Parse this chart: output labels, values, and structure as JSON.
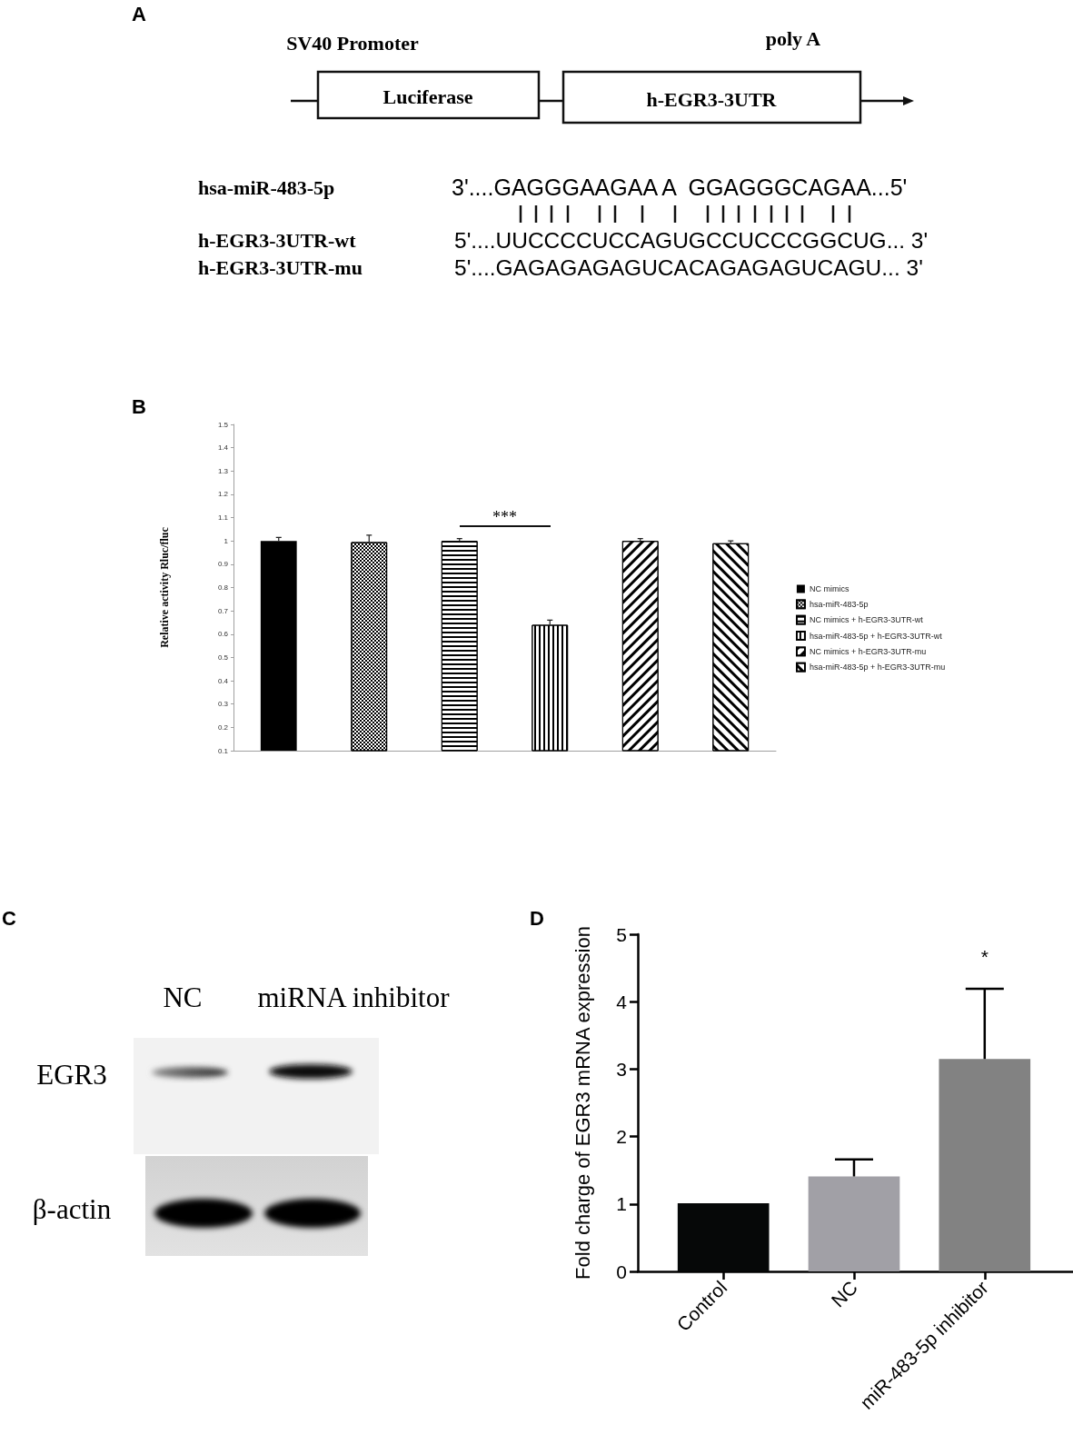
{
  "chart_data": [
    {
      "type": "other",
      "title": "A",
      "annotations": [
        "SV40 Promoter",
        "poly A",
        "Luciferase",
        "h-EGR3-3UTR",
        "hsa-miR-483-5p",
        "3'....GAGGGAAGAA A  GGAGGGCAGAA...5'",
        "h-EGR3-3UTR-wt",
        "5'....UUCCCCUCCAGUGCCUCCCGGCUG... 3'",
        "h-EGR3-3UTR-mu",
        "5'....GAGAGAGAGUCACAGAGAGUCAGU... 3'"
      ]
    },
    {
      "type": "bar",
      "title": "B",
      "ylabel": "Relative activity Rluc/fluc",
      "categories": [
        null,
        null,
        null,
        null,
        null,
        null
      ],
      "series": [
        {
          "name": "NC mimics",
          "color": "#000000",
          "values": [
            1,
            null,
            null,
            null,
            null,
            null
          ],
          "errors": [
            0.015,
            null,
            null,
            null,
            null,
            null
          ]
        },
        {
          "name": "hsa-miR-483-5p",
          "color": "#000000",
          "values": [
            null,
            0.995,
            null,
            null,
            null,
            null
          ],
          "errors": [
            null,
            0.03,
            null,
            null,
            null,
            null
          ]
        },
        {
          "name": "NC mimics + h-EGR3-3UTR-wt",
          "color": "#000000",
          "values": [
            null,
            null,
            1,
            null,
            null,
            null
          ],
          "errors": [
            null,
            null,
            0.01,
            null,
            null,
            null
          ]
        },
        {
          "name": "hsa-miR-483-5p + h-EGR3-3UTR-wt",
          "color": "#000000",
          "values": [
            null,
            null,
            null,
            0.64,
            null,
            null
          ],
          "errors": [
            null,
            null,
            null,
            0.02,
            null,
            null
          ]
        },
        {
          "name": "NC mimics + h-EGR3-3UTR-mu",
          "color": "#000000",
          "values": [
            null,
            null,
            null,
            null,
            1,
            null
          ],
          "errors": [
            null,
            null,
            null,
            null,
            0.01,
            null
          ]
        },
        {
          "name": "hsa-miR-483-5p + h-EGR3-3UTR-mu",
          "color": "#000000",
          "values": [
            null,
            null,
            null,
            null,
            null,
            0.99
          ],
          "errors": [
            null,
            null,
            null,
            null,
            null,
            0.01
          ]
        }
      ],
      "ylim": [
        0.1,
        1.5
      ],
      "yticks": [
        0.1,
        0.2,
        0.3,
        0.4,
        0.5,
        0.6,
        0.7,
        0.8,
        0.9,
        1,
        1.1,
        1.2,
        1.3,
        1.4,
        1.5
      ],
      "legend": "right",
      "annotations": [
        "***"
      ]
    },
    {
      "type": "other",
      "title": "C",
      "annotations": [
        "NC",
        "miRNA inhibitor",
        "EGR3",
        "β-actin"
      ]
    },
    {
      "type": "bar",
      "title": "D",
      "ylabel": "Fold charge of EGR3 mRNA expression",
      "categories": [
        "Control",
        "NC",
        "miR-483-5p inhibitor"
      ],
      "values": [
        1.01,
        1.41,
        3.15
      ],
      "colors": [
        "#060808",
        "#a1a0a6",
        "#828282"
      ],
      "errors": [
        null,
        0.25,
        1.04
      ],
      "ylim": [
        0,
        5
      ],
      "yticks": [
        0,
        1,
        2,
        3,
        4,
        5
      ],
      "annotations": [
        "*"
      ]
    }
  ]
}
